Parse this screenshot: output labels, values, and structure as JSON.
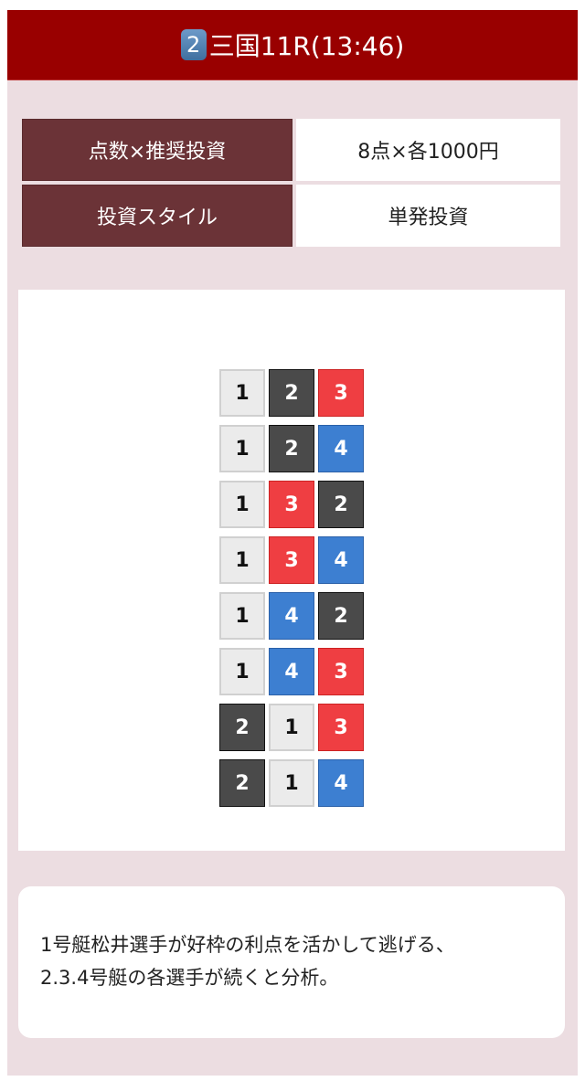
{
  "header": {
    "race_number_badge": "2",
    "title": "三国11R(13:46)"
  },
  "info": [
    {
      "label": "点数×推奨投資",
      "value": "8点×各1000円"
    },
    {
      "label": "投資スタイル",
      "value": "単発投資"
    }
  ],
  "boat_colors": {
    "1": "#ebebeb",
    "2": "#4a4a4a",
    "3": "#ef3e42",
    "4": "#3d7fd1"
  },
  "combinations": [
    [
      "1",
      "2",
      "3"
    ],
    [
      "1",
      "2",
      "4"
    ],
    [
      "1",
      "3",
      "2"
    ],
    [
      "1",
      "3",
      "4"
    ],
    [
      "1",
      "4",
      "2"
    ],
    [
      "1",
      "4",
      "3"
    ],
    [
      "2",
      "1",
      "3"
    ],
    [
      "2",
      "1",
      "4"
    ]
  ],
  "comment": {
    "lines": [
      "1号艇松井選手が好枠の利点を活かして逃げる、",
      "2.3.4号艇の各選手が続くと分析。"
    ]
  }
}
